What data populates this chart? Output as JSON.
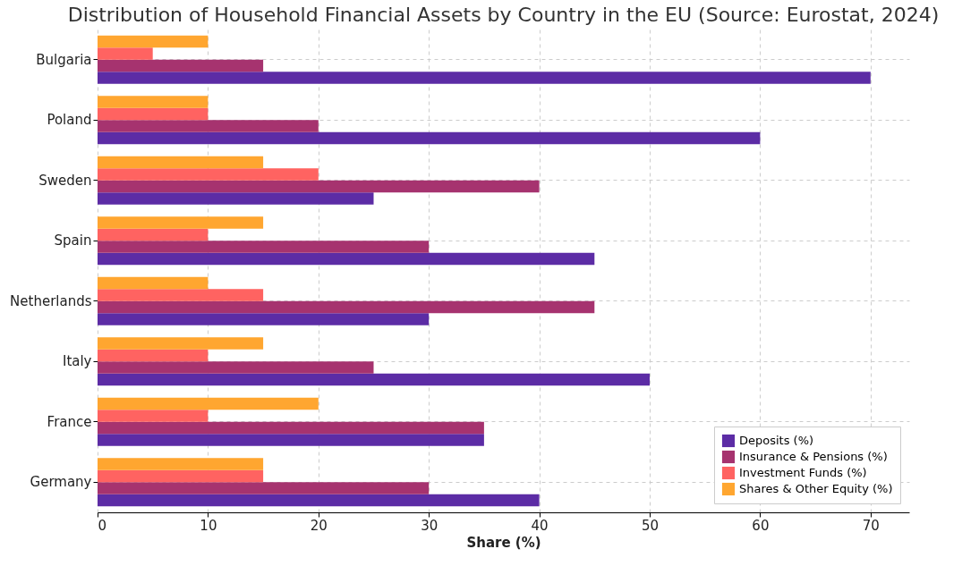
{
  "chart_data": {
    "type": "bar",
    "orientation": "horizontal",
    "title": "Distribution of Household Financial Assets by Country in the EU (Source: Eurostat, 2024)",
    "xlabel": "Share (%)",
    "categories": [
      "Bulgaria",
      "Poland",
      "Sweden",
      "Spain",
      "Netherlands",
      "Italy",
      "France",
      "Germany"
    ],
    "series": [
      {
        "name": "Deposits (%)",
        "color": "#5c2ca5",
        "values": [
          70,
          60,
          25,
          45,
          30,
          50,
          35,
          40
        ]
      },
      {
        "name": "Insurance & Pensions (%)",
        "color": "#a6336f",
        "values": [
          15,
          20,
          40,
          30,
          45,
          25,
          35,
          30
        ]
      },
      {
        "name": "Investment Funds (%)",
        "color": "#ff6361",
        "values": [
          5,
          10,
          20,
          10,
          15,
          10,
          10,
          15
        ]
      },
      {
        "name": "Shares & Other Equity (%)",
        "color": "#ffa630",
        "values": [
          10,
          10,
          15,
          15,
          10,
          15,
          20,
          15
        ]
      }
    ],
    "xlim": [
      0,
      73.5
    ],
    "xticks": [
      0,
      10,
      20,
      30,
      40,
      50,
      60,
      70
    ],
    "grid": true,
    "legend": "bottom right"
  }
}
